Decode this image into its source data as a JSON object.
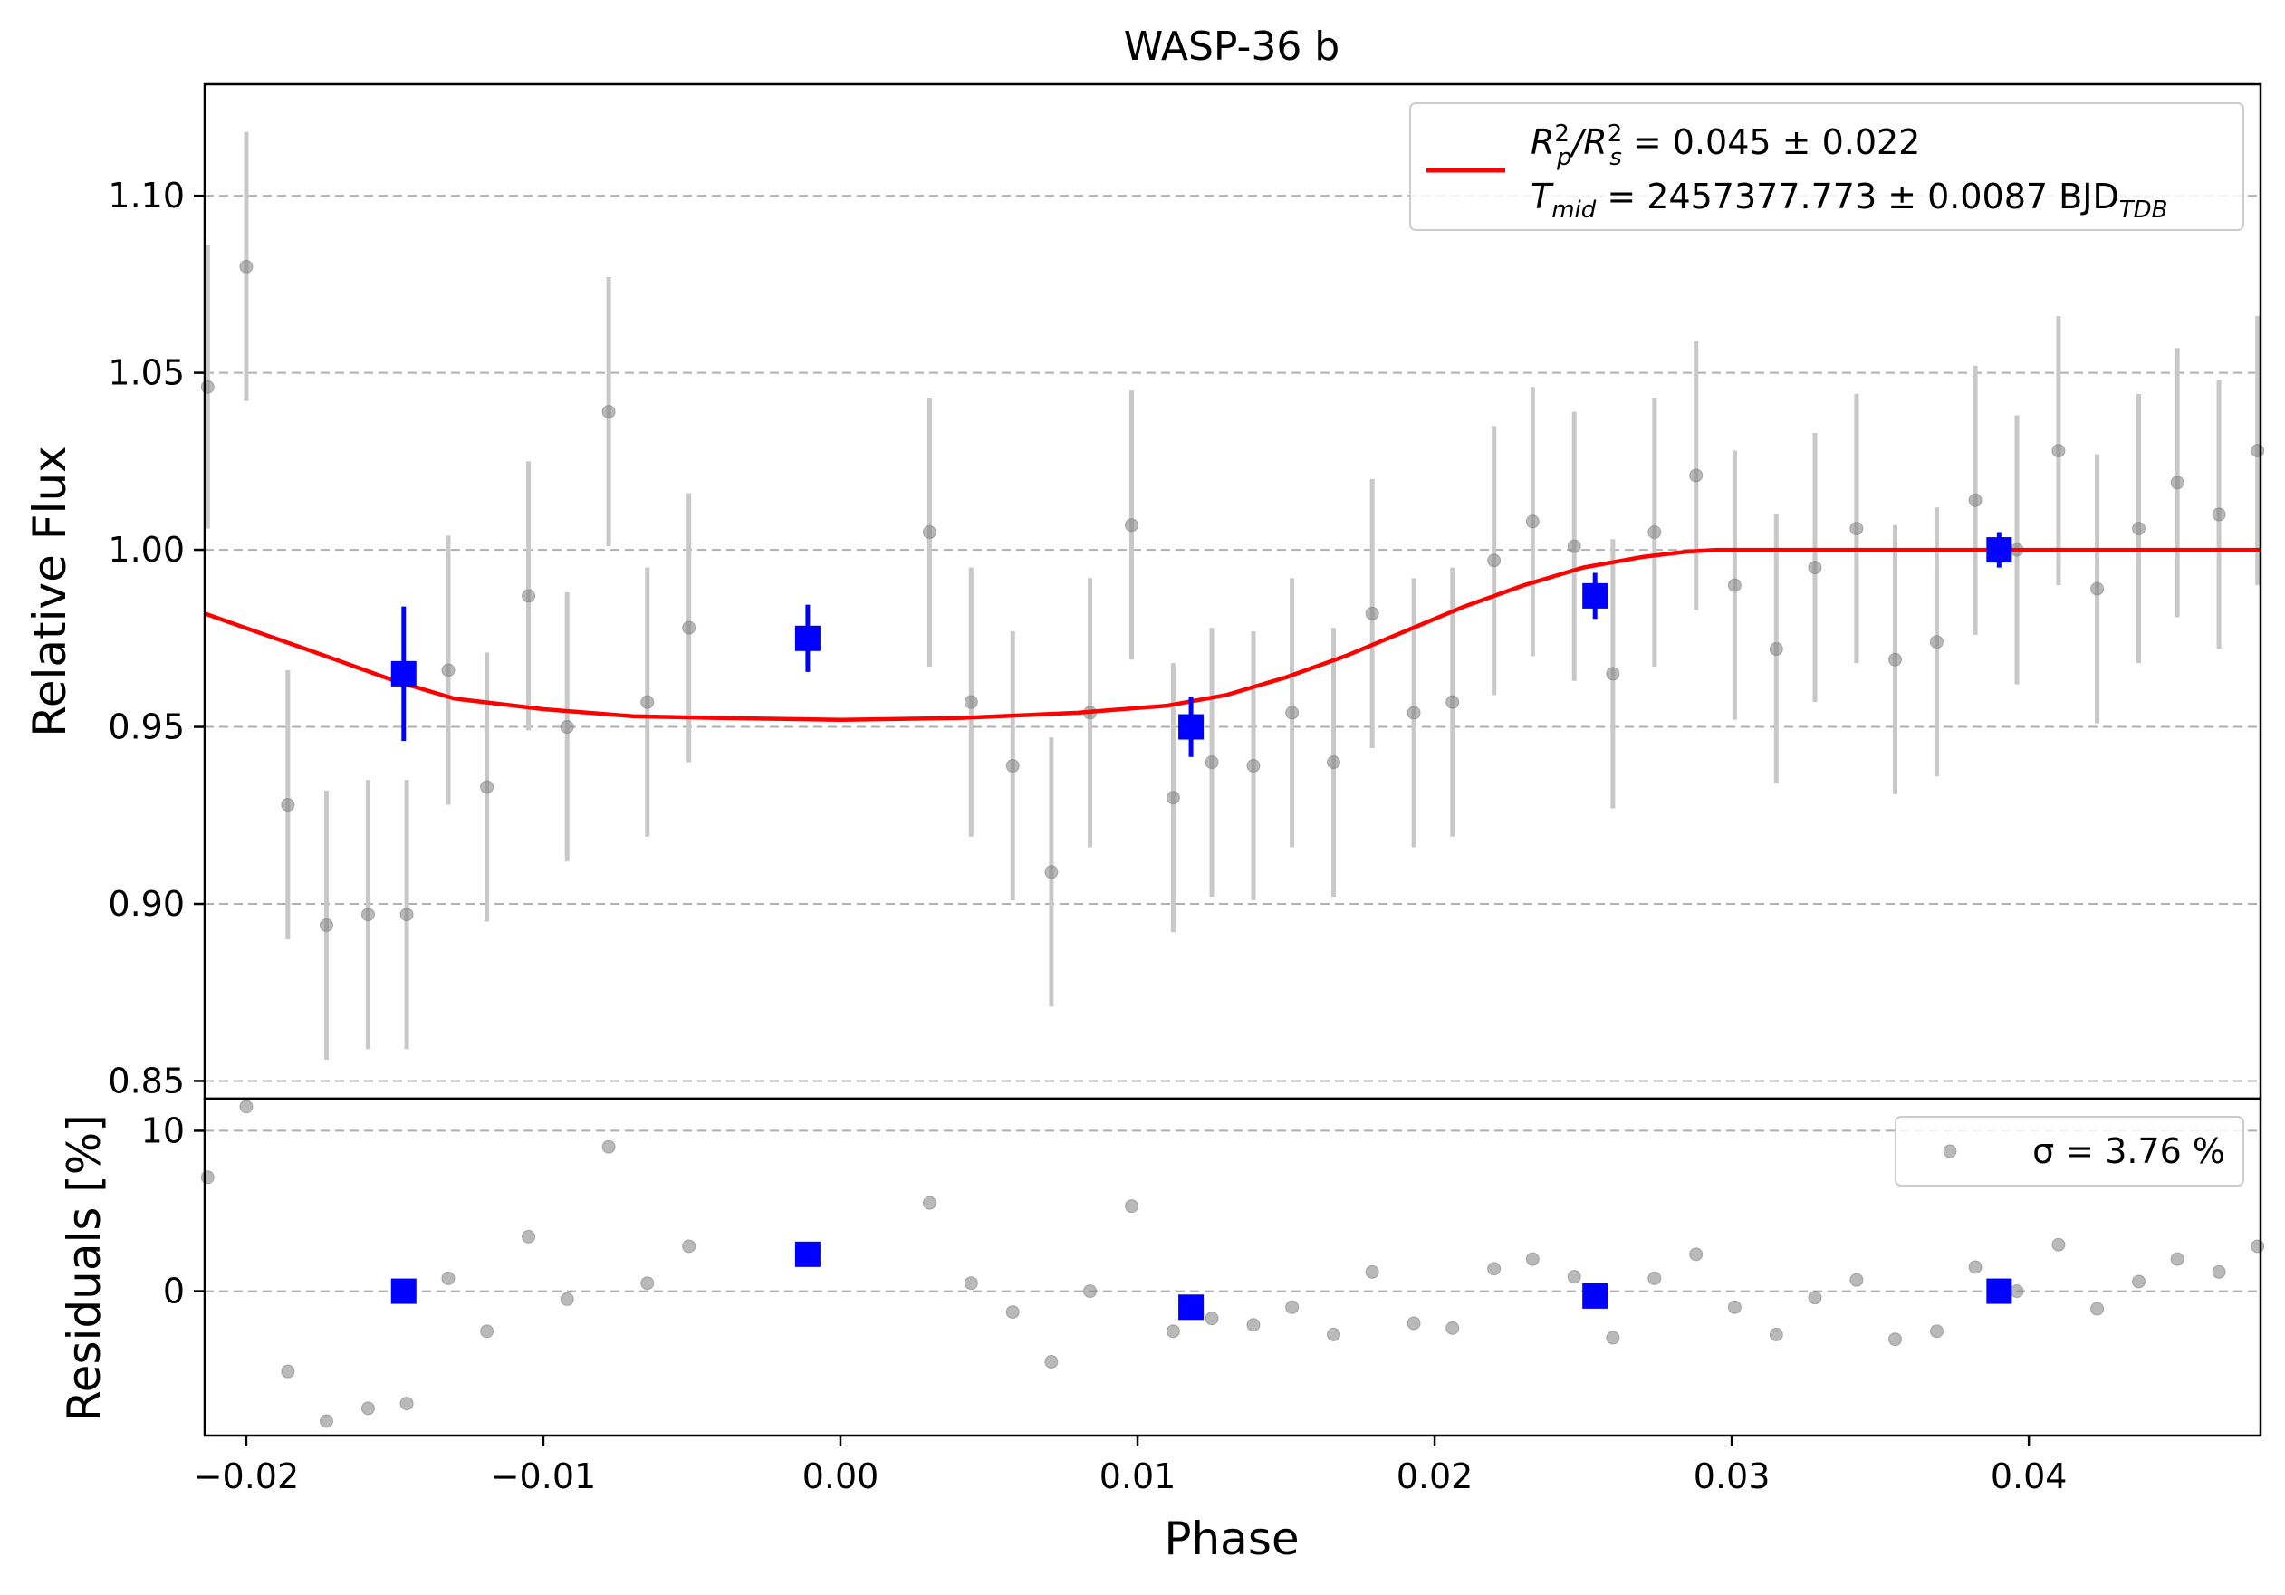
{
  "chart_data": {
    "type": "scatter",
    "title": "WASP-36 b",
    "xlabel": "Phase",
    "xlim": [
      -0.0214,
      0.0478
    ],
    "xticks": [
      -0.02,
      -0.01,
      0.0,
      0.01,
      0.02,
      0.03,
      0.04
    ],
    "xtick_labels": [
      "−0.02",
      "−0.01",
      "0.00",
      "0.01",
      "0.02",
      "0.03",
      "0.04"
    ],
    "grid": "horizontal dashed",
    "panels": {
      "flux": {
        "ylabel": "Relative Flux",
        "ylim": [
          0.845,
          1.1315
        ],
        "yticks": [
          0.85,
          0.9,
          0.95,
          1.0,
          1.05,
          1.1
        ],
        "ytick_labels": [
          "0.85",
          "0.90",
          "0.95",
          "1.00",
          "1.05",
          "1.10"
        ],
        "legend": {
          "position": "top-right",
          "line1": {
            "prefix": "R",
            "sub1": "p",
            "sup1": "2",
            "slash": "/R",
            "sub2": "s",
            "sup2": "2",
            "rest": " = 0.045 ± 0.022"
          },
          "line2": {
            "prefix": "T",
            "sub1": "mid",
            "rest": " = 2457377.773 ± 0.0087 BJD",
            "sub2": "TDB"
          }
        }
      },
      "residuals": {
        "ylabel": "Residuals [%]",
        "ylim": [
          -9,
          12
        ],
        "yticks": [
          0,
          10
        ],
        "ytick_labels": [
          "0",
          "10"
        ],
        "legend": {
          "position": "top-right",
          "label": "σ = 3.76 %"
        }
      }
    },
    "colors": {
      "data": "#808080",
      "errorbar": "#c8c8c8",
      "binned": "#0000ff",
      "model": "#ff0000",
      "grid": "#b0b0b0"
    },
    "series": [
      {
        "name": "data",
        "marker": "circle",
        "points": [
          [
            -0.0213,
            1.046,
            0.04,
            7.1
          ],
          [
            -0.02,
            1.08,
            0.038,
            11.5
          ],
          [
            -0.0186,
            0.928,
            0.038,
            -5.0
          ],
          [
            -0.0173,
            0.894,
            0.038,
            -8.1
          ],
          [
            -0.0159,
            0.897,
            0.038,
            -7.3
          ],
          [
            -0.0146,
            0.897,
            0.038,
            -7.0
          ],
          [
            -0.0132,
            0.966,
            0.038,
            0.8
          ],
          [
            -0.0119,
            0.933,
            0.038,
            -2.5
          ],
          [
            -0.0105,
            0.987,
            0.038,
            3.4
          ],
          [
            -0.0092,
            0.95,
            0.038,
            -0.5
          ],
          [
            -0.0078,
            1.039,
            0.038,
            9.0
          ],
          [
            -0.0065,
            0.957,
            0.038,
            0.5
          ],
          [
            -0.0051,
            0.978,
            0.038,
            2.8
          ],
          [
            0.003,
            1.005,
            0.038,
            5.5
          ],
          [
            0.0044,
            0.957,
            0.038,
            0.5
          ],
          [
            0.0058,
            0.939,
            0.038,
            -1.3
          ],
          [
            0.0071,
            0.909,
            0.038,
            -4.4
          ],
          [
            0.0084,
            0.954,
            0.038,
            0.0
          ],
          [
            0.0098,
            1.007,
            0.038,
            5.3
          ],
          [
            0.0112,
            0.93,
            0.038,
            -2.5
          ],
          [
            0.0125,
            0.94,
            0.038,
            -1.7
          ],
          [
            0.0139,
            0.939,
            0.038,
            -2.1
          ],
          [
            0.0152,
            0.954,
            0.038,
            -1.0
          ],
          [
            0.0166,
            0.94,
            0.038,
            -2.7
          ],
          [
            0.0179,
            0.982,
            0.038,
            1.2
          ],
          [
            0.0193,
            0.954,
            0.038,
            -2.0
          ],
          [
            0.0206,
            0.957,
            0.038,
            -2.3
          ],
          [
            0.022,
            0.997,
            0.038,
            1.4
          ],
          [
            0.0233,
            1.008,
            0.038,
            2.0
          ],
          [
            0.0247,
            1.001,
            0.038,
            0.9
          ],
          [
            0.026,
            0.965,
            0.038,
            -2.9
          ],
          [
            0.0274,
            1.005,
            0.038,
            0.8
          ],
          [
            0.0288,
            1.021,
            0.038,
            2.3
          ],
          [
            0.0301,
            0.99,
            0.038,
            -1.0
          ],
          [
            0.0315,
            0.972,
            0.038,
            -2.7
          ],
          [
            0.0328,
            0.995,
            0.038,
            -0.4
          ],
          [
            0.0342,
            1.006,
            0.038,
            0.7
          ],
          [
            0.0355,
            0.969,
            0.038,
            -3.0
          ],
          [
            0.0369,
            0.974,
            0.038,
            -2.5
          ],
          [
            0.0382,
            1.014,
            0.038,
            1.5
          ],
          [
            0.0396,
            1.0,
            0.038,
            0.0
          ],
          [
            0.041,
            1.028,
            0.038,
            2.9
          ],
          [
            0.0423,
            0.989,
            0.038,
            -1.1
          ],
          [
            0.0437,
            1.006,
            0.038,
            0.6
          ],
          [
            0.045,
            1.019,
            0.038,
            2.0
          ],
          [
            0.0464,
            1.01,
            0.038,
            1.2
          ],
          [
            0.0477,
            1.028,
            0.038,
            2.8
          ]
        ]
      },
      {
        "name": "binned",
        "marker": "square",
        "points": [
          [
            -0.0147,
            0.965,
            0.019,
            0.0
          ],
          [
            -0.0011,
            0.975,
            0.0095,
            2.3
          ],
          [
            0.0118,
            0.95,
            0.0085,
            -1.0
          ],
          [
            0.0254,
            0.987,
            0.0065,
            -0.3
          ],
          [
            0.039,
            1.0,
            0.005,
            0.0
          ]
        ]
      },
      {
        "name": "model",
        "marker": "line",
        "x": [
          -0.0214,
          -0.018,
          -0.015,
          -0.013,
          -0.01,
          -0.007,
          -0.004,
          0.0,
          0.004,
          0.008,
          0.011,
          0.013,
          0.015,
          0.017,
          0.019,
          0.021,
          0.023,
          0.025,
          0.027,
          0.0285,
          0.0295,
          0.035,
          0.0478
        ],
        "y": [
          0.982,
          0.972,
          0.963,
          0.958,
          0.955,
          0.953,
          0.9525,
          0.952,
          0.9525,
          0.954,
          0.956,
          0.959,
          0.964,
          0.97,
          0.977,
          0.984,
          0.99,
          0.995,
          0.998,
          0.9995,
          1.0,
          1.0,
          1.0
        ]
      }
    ]
  }
}
